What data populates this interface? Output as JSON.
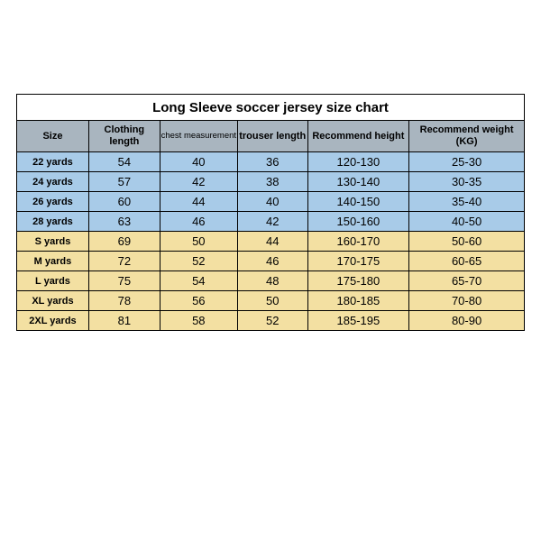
{
  "title": "Long Sleeve soccer jersey size chart",
  "columns": [
    {
      "label": "Size",
      "class": "c0"
    },
    {
      "label": "Clothing length",
      "class": "c1"
    },
    {
      "label": "chest measurement",
      "class": "c2",
      "small": true
    },
    {
      "label": "trouser length",
      "class": "c3"
    },
    {
      "label": "Recommend height",
      "class": "c4"
    },
    {
      "label": "Recommend weight (KG)",
      "class": "c5"
    }
  ],
  "rows": [
    {
      "color": "blue",
      "cells": [
        "22 yards",
        "54",
        "40",
        "36",
        "120-130",
        "25-30"
      ]
    },
    {
      "color": "blue",
      "cells": [
        "24 yards",
        "57",
        "42",
        "38",
        "130-140",
        "30-35"
      ]
    },
    {
      "color": "blue",
      "cells": [
        "26 yards",
        "60",
        "44",
        "40",
        "140-150",
        "35-40"
      ]
    },
    {
      "color": "blue",
      "cells": [
        "28 yards",
        "63",
        "46",
        "42",
        "150-160",
        "40-50"
      ]
    },
    {
      "color": "yellow",
      "cells": [
        "S yards",
        "69",
        "50",
        "44",
        "160-170",
        "50-60"
      ]
    },
    {
      "color": "yellow",
      "cells": [
        "M yards",
        "72",
        "52",
        "46",
        "170-175",
        "60-65"
      ]
    },
    {
      "color": "yellow",
      "cells": [
        "L yards",
        "75",
        "54",
        "48",
        "175-180",
        "65-70"
      ]
    },
    {
      "color": "yellow",
      "cells": [
        "XL yards",
        "78",
        "56",
        "50",
        "180-185",
        "70-80"
      ]
    },
    {
      "color": "yellow",
      "cells": [
        "2XL yards",
        "81",
        "58",
        "52",
        "185-195",
        "80-90"
      ]
    }
  ],
  "colors": {
    "header_bg": "#a9b5bf",
    "blue_row": "#a8cbe8",
    "yellow_row": "#f3e0a2",
    "border": "#000000",
    "background": "#ffffff"
  }
}
